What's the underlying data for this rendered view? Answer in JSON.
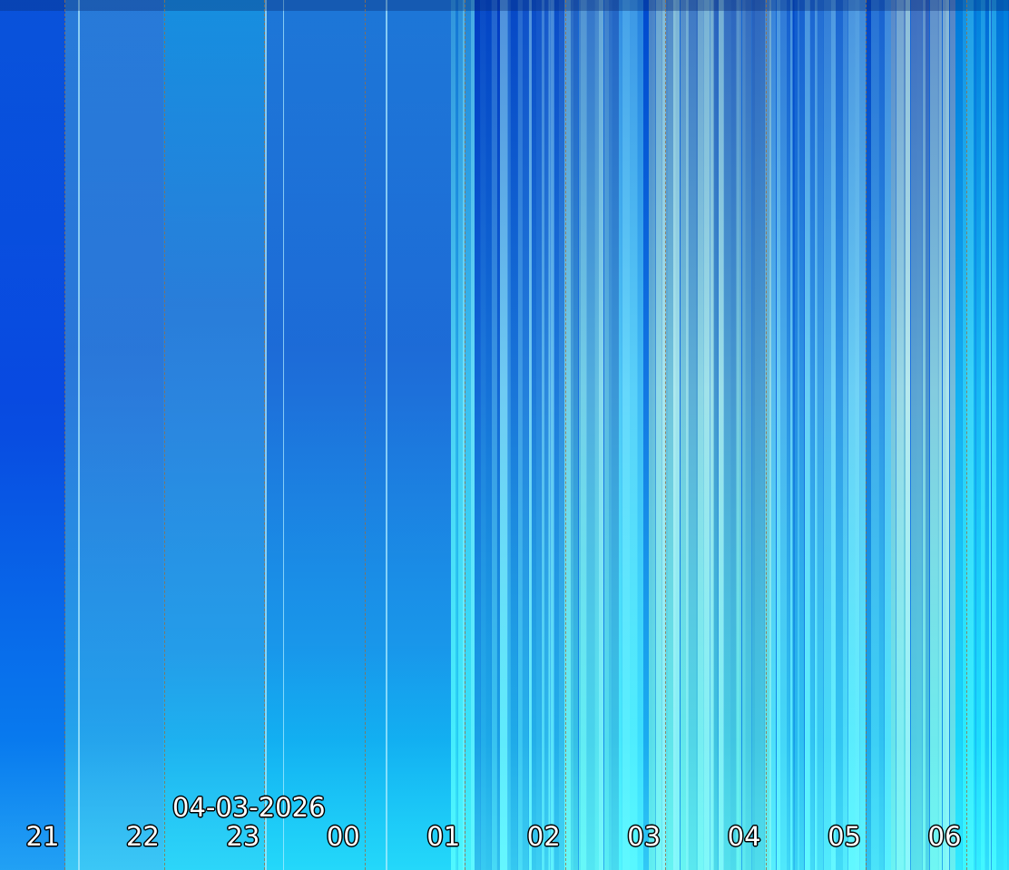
{
  "date_label": "04-03-2026",
  "hour_labels": [
    "21",
    "22",
    "23",
    "00",
    "01",
    "02",
    "03",
    "04",
    "05",
    "06"
  ],
  "colors": {
    "sky_dark": "#0a55e6",
    "sky_mid": "#2a82e4",
    "sky_cyan": "#10c8f8",
    "aurora_light": "#8fd8f0",
    "aurora_dark": "#1a50b0"
  }
}
